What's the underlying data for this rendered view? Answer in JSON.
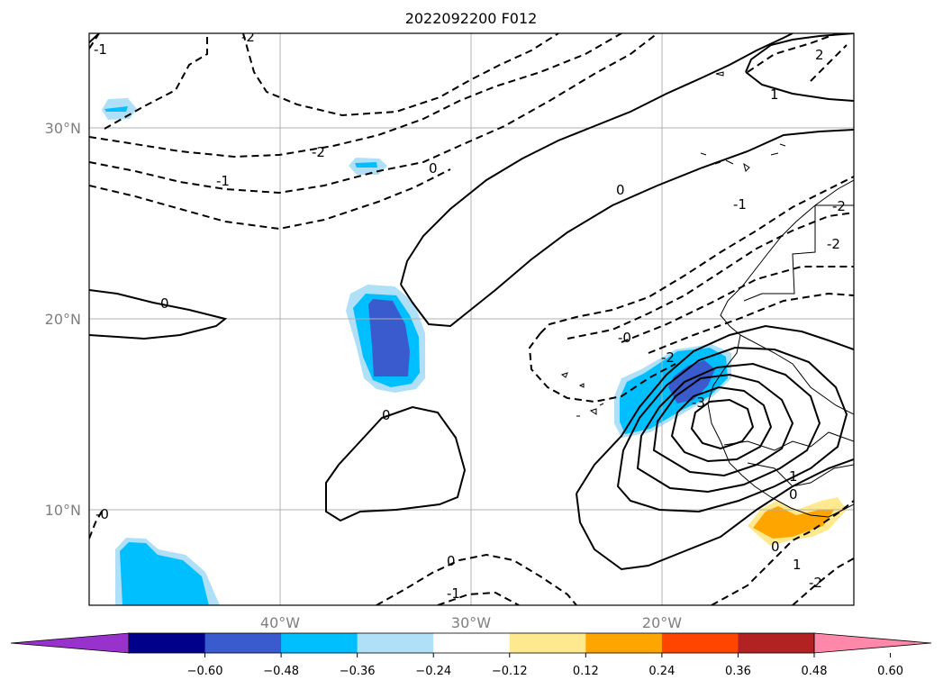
{
  "title": "2022092200 F012",
  "map": {
    "lat_ticks": [
      "30°N",
      "20°N",
      "10°N"
    ],
    "lon_ticks": [
      "40°W",
      "30°W",
      "20°W"
    ]
  },
  "contour_labels": [
    "-1",
    "-2",
    "2",
    "-2",
    "-1",
    "0",
    "0",
    "1",
    "0",
    "0",
    "-1",
    "-2",
    "-0",
    "-2",
    "-3",
    "1",
    "0",
    "0",
    "-0",
    "1",
    "-2",
    "0",
    "-1",
    "-2"
  ],
  "colorbar": {
    "ticks": [
      "−0.60",
      "−0.48",
      "−0.36",
      "−0.24",
      "−0.12",
      "0.12",
      "0.24",
      "0.36",
      "0.48",
      "0.60"
    ],
    "colors": [
      "#9932cc",
      "#00008b",
      "#3a5bcd",
      "#00bfff",
      "#afe0f8",
      "#ffffff",
      "#ffe98f",
      "#ffa500",
      "#ff4500",
      "#b22222",
      "#ff88aa"
    ]
  },
  "fill_colors": {
    "light_blue": "#afe0f8",
    "blue": "#00bfff",
    "dark_blue": "#3a5bcd",
    "yellow": "#ffe98f",
    "orange": "#ffa500"
  }
}
